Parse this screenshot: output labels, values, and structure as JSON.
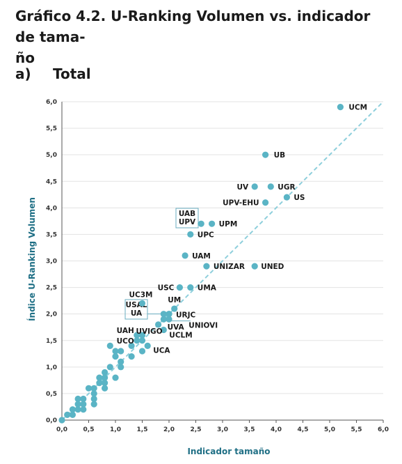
{
  "figure": {
    "title": "Gráfico 4.2. U-Ranking Volumen vs. indicador de tama-ño",
    "title_line1": "Gráfico 4.2. U-Ranking Volumen vs. indicador de tama-",
    "title_line2": "ño",
    "panel_letter": "a)",
    "panel_title": "Total"
  },
  "colors": {
    "point": "#5ab4c5",
    "diagonal": "#8ecfdc",
    "grid": "#e3e3e3",
    "axis_title": "#1f6f85",
    "box": "#6aaec0"
  },
  "chart_data": {
    "type": "scatter",
    "xlabel": "Indicador tamaño",
    "ylabel": "Índice U-Ranking Volumen",
    "xlim": [
      0,
      6
    ],
    "ylim": [
      0,
      6
    ],
    "xticks": [
      "0,0",
      "0,5",
      "1,0",
      "1,5",
      "2,0",
      "2,5",
      "3,0",
      "3,5",
      "4,0",
      "4,5",
      "5,0",
      "5,5",
      "6,0"
    ],
    "yticks": [
      "0,0",
      "0,5",
      "1,0",
      "1,5",
      "2,0",
      "2,5",
      "3,0",
      "3,5",
      "4,0",
      "4,5",
      "5,0",
      "5,5",
      "6,0"
    ],
    "grid": "horizontal",
    "reference_line": {
      "from": [
        0,
        0
      ],
      "to": [
        6,
        6
      ],
      "style": "dashed"
    },
    "labeled_points": [
      {
        "name": "UCM",
        "x": 5.2,
        "y": 5.9
      },
      {
        "name": "UB",
        "x": 3.8,
        "y": 5.0
      },
      {
        "name": "UV",
        "x": 3.6,
        "y": 4.4
      },
      {
        "name": "UGR",
        "x": 3.9,
        "y": 4.4
      },
      {
        "name": "US",
        "x": 4.2,
        "y": 4.2
      },
      {
        "name": "UPV-EHU",
        "x": 3.8,
        "y": 4.1
      },
      {
        "name": "UPM",
        "x": 2.8,
        "y": 3.7
      },
      {
        "name": "UPC",
        "x": 2.4,
        "y": 3.5
      },
      {
        "name": "UAM",
        "x": 2.3,
        "y": 3.1
      },
      {
        "name": "UNIZAR",
        "x": 2.7,
        "y": 2.9
      },
      {
        "name": "UNED",
        "x": 3.6,
        "y": 2.9
      },
      {
        "name": "USC",
        "x": 2.2,
        "y": 2.5
      },
      {
        "name": "UMA",
        "x": 2.4,
        "y": 2.5
      },
      {
        "name": "UC3M",
        "x": 1.5,
        "y": 2.2
      },
      {
        "name": "UM",
        "x": 2.1,
        "y": 2.1
      },
      {
        "name": "URJC",
        "x": 2.0,
        "y": 2.0
      },
      {
        "name": "UNIOVI",
        "x": 1.9,
        "y": 1.9
      },
      {
        "name": "UVA",
        "x": 1.8,
        "y": 1.8
      },
      {
        "name": "UCLM",
        "x": 1.9,
        "y": 1.7
      },
      {
        "name": "UVIGO",
        "x": 1.5,
        "y": 1.6
      },
      {
        "name": "UAH",
        "x": 1.4,
        "y": 1.6
      },
      {
        "name": "UCO",
        "x": 1.4,
        "y": 1.5
      },
      {
        "name": "UCA",
        "x": 1.6,
        "y": 1.4
      }
    ],
    "boxed_groups": [
      {
        "labels": [
          "UAB",
          "UPV"
        ],
        "x": 2.6,
        "y": 3.7
      },
      {
        "labels": [
          "USAL",
          "UA"
        ],
        "x": 2.0,
        "y": 2.0
      }
    ],
    "unlabeled_points": [
      [
        0.0,
        0.0
      ],
      [
        0.1,
        0.1
      ],
      [
        0.2,
        0.1
      ],
      [
        0.2,
        0.2
      ],
      [
        0.3,
        0.2
      ],
      [
        0.3,
        0.3
      ],
      [
        0.3,
        0.4
      ],
      [
        0.4,
        0.2
      ],
      [
        0.4,
        0.3
      ],
      [
        0.4,
        0.4
      ],
      [
        0.5,
        0.6
      ],
      [
        0.6,
        0.3
      ],
      [
        0.6,
        0.4
      ],
      [
        0.6,
        0.5
      ],
      [
        0.6,
        0.6
      ],
      [
        0.7,
        0.7
      ],
      [
        0.7,
        0.8
      ],
      [
        0.8,
        0.6
      ],
      [
        0.8,
        0.7
      ],
      [
        0.8,
        0.8
      ],
      [
        0.8,
        0.9
      ],
      [
        0.9,
        1.0
      ],
      [
        0.9,
        1.4
      ],
      [
        1.0,
        0.8
      ],
      [
        1.0,
        1.2
      ],
      [
        1.0,
        1.3
      ],
      [
        1.1,
        1.0
      ],
      [
        1.1,
        1.1
      ],
      [
        1.1,
        1.3
      ],
      [
        1.3,
        1.2
      ],
      [
        1.3,
        1.4
      ],
      [
        1.5,
        1.3
      ],
      [
        1.5,
        1.5
      ],
      [
        1.9,
        2.0
      ],
      [
        2.0,
        1.9
      ]
    ]
  }
}
